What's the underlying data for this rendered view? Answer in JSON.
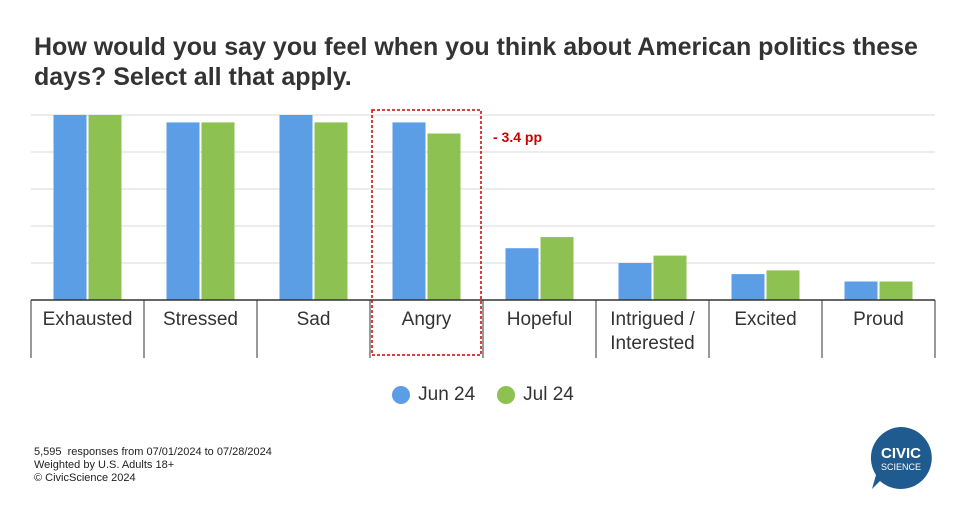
{
  "chart_data": {
    "type": "bar",
    "title": "How would you say you feel when you think about American politics these days? Select all that apply.",
    "categories": [
      "Exhausted",
      "Stressed",
      "Sad",
      "Angry",
      "Hopeful",
      "Intrigued / Interested",
      "Excited",
      "Proud"
    ],
    "category_lines": [
      [
        "Exhausted"
      ],
      [
        "Stressed"
      ],
      [
        "Sad"
      ],
      [
        "Angry"
      ],
      [
        "Hopeful"
      ],
      [
        "Intrigued /",
        "Interested"
      ],
      [
        "Excited"
      ],
      [
        "Proud"
      ]
    ],
    "series": [
      {
        "name": "Jun 24",
        "color": "#5b9ee6",
        "values": [
          50,
          48,
          50,
          48,
          14,
          10,
          7,
          5
        ]
      },
      {
        "name": "Jul 24",
        "color": "#8dc151",
        "values": [
          50,
          48,
          48,
          45,
          17,
          12,
          8,
          5
        ]
      }
    ],
    "ylim": [
      0,
      50
    ],
    "gridlines": [
      10,
      20,
      30,
      40,
      50
    ],
    "grid": true,
    "legend_position": "bottom",
    "annotation": {
      "category": "Angry",
      "text": "- 3.4 pp",
      "color": "#cc0000"
    }
  },
  "footer": {
    "responses": "5,595  responses from 07/01/2024 to 07/28/2024",
    "weighting": "Weighted by U.S. Adults 18+",
    "copyright": "© CivicScience 2024"
  },
  "logo": {
    "line1": "CIVIC",
    "line2": "SCIENCE",
    "color": "#1f5b8f"
  }
}
